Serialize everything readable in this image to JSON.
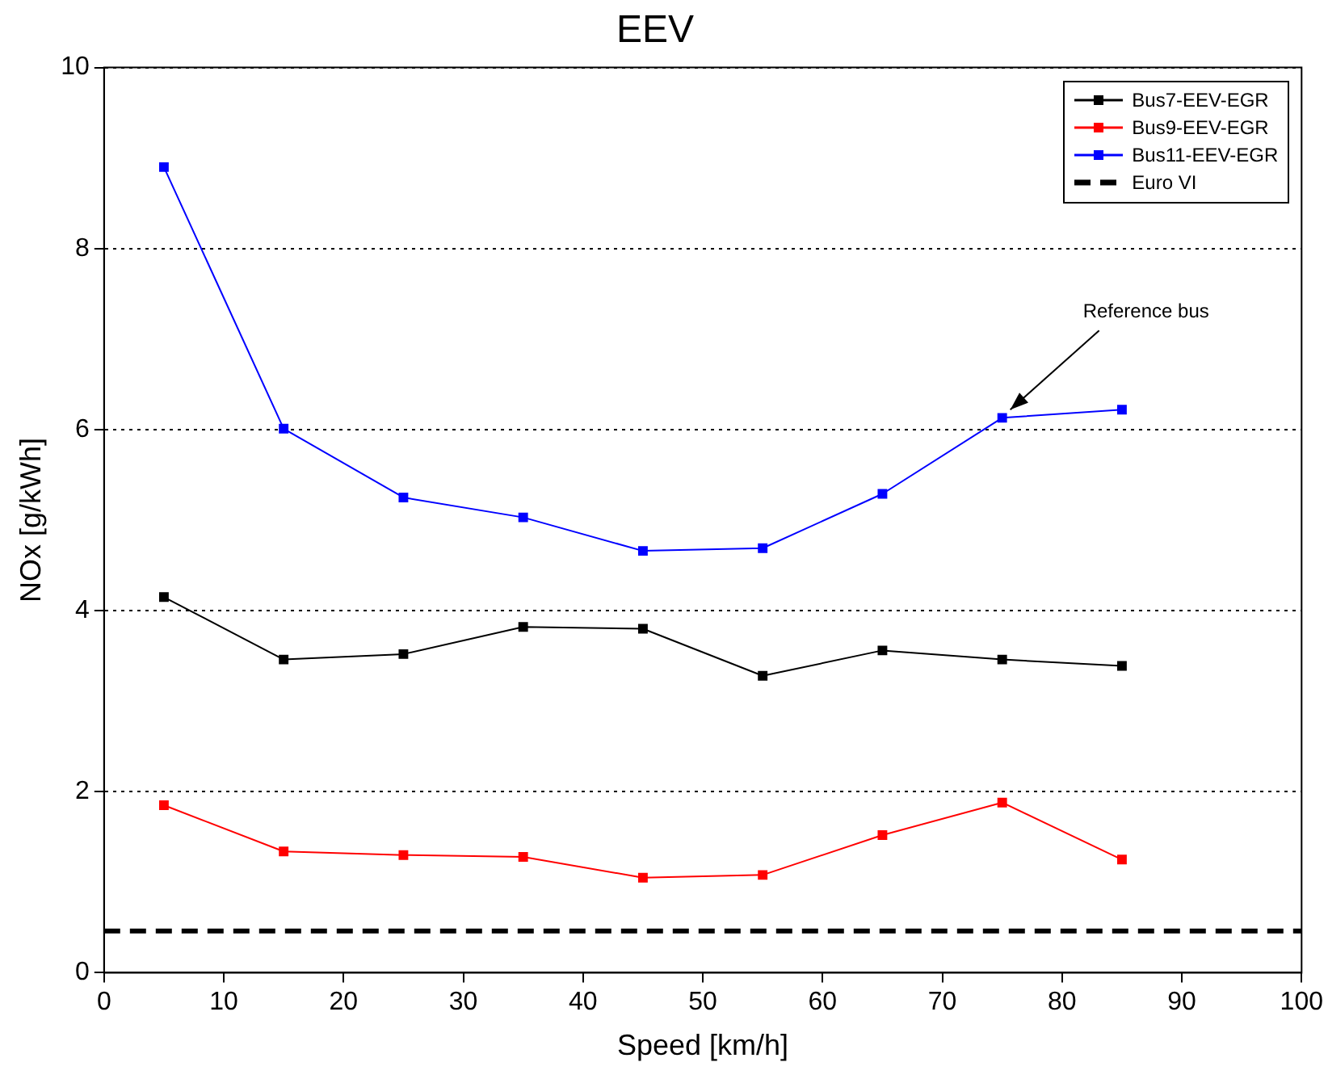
{
  "chart_data": {
    "type": "line",
    "title": "EEV",
    "xlabel": "Speed [km/h]",
    "ylabel": "NOx [g/kWh]",
    "x": [
      5,
      15,
      25,
      35,
      45,
      55,
      65,
      75,
      85
    ],
    "series": [
      {
        "name": "Bus7-EEV-EGR",
        "color": "#000000",
        "values": [
          4.15,
          3.46,
          3.52,
          3.82,
          3.8,
          3.28,
          3.56,
          3.46,
          3.39
        ]
      },
      {
        "name": "Bus9-EEV-EGR",
        "color": "#ff0000",
        "values": [
          1.85,
          1.34,
          1.3,
          1.28,
          1.05,
          1.08,
          1.52,
          1.88,
          1.25
        ]
      },
      {
        "name": "Bus11-EEV-EGR",
        "color": "#0000ff",
        "values": [
          8.9,
          6.01,
          5.25,
          5.03,
          4.66,
          4.69,
          5.29,
          6.13,
          6.22
        ]
      },
      {
        "name": "Euro VI",
        "color": "#000000",
        "x": [
          0,
          100
        ],
        "values": [
          0.46,
          0.46
        ],
        "line_style": "dashed",
        "marker": "none"
      }
    ],
    "marker": "square",
    "line_style": "solid",
    "xlim": [
      0,
      100
    ],
    "xticks": [
      0,
      10,
      20,
      30,
      40,
      50,
      60,
      70,
      80,
      90,
      100
    ],
    "ylim": [
      0,
      10
    ],
    "yticks": [
      0,
      2,
      4,
      6,
      8,
      10
    ],
    "grid": "y",
    "legend": "top right",
    "annotations": [
      {
        "text": "Reference bus",
        "x": 75,
        "y": 6.13
      }
    ]
  }
}
